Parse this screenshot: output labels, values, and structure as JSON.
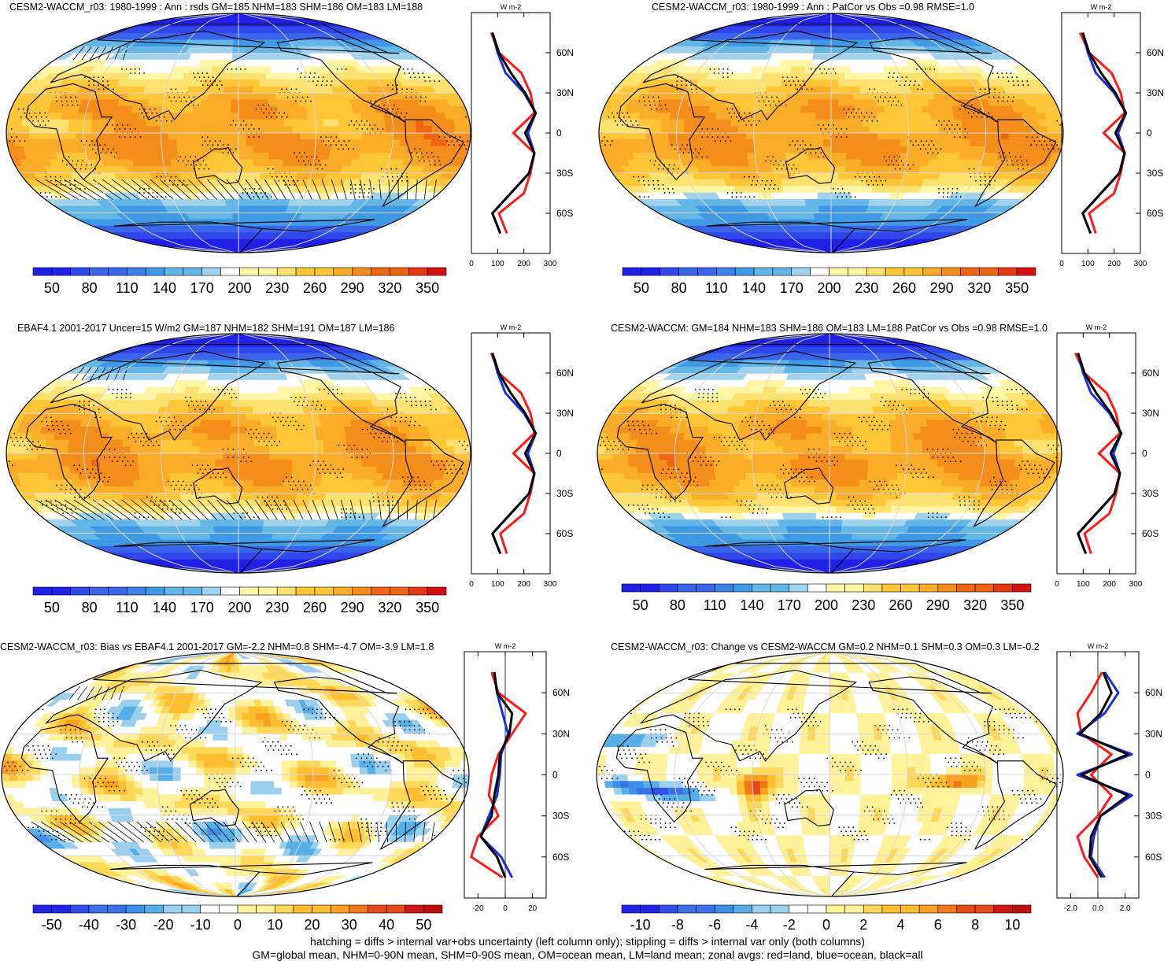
{
  "panels": [
    {
      "title": "CESM2-WACCM_r03: 1980-1999 : Ann : rsds GM=185 NHM=183 SHM=186 OM=183 LM=188",
      "field": "clim",
      "hatch": true,
      "stipple": true,
      "colorbar": [
        "50",
        "80",
        "110",
        "140",
        "170",
        "200",
        "230",
        "260",
        "290",
        "320",
        "350"
      ],
      "zonal": {
        "units": "W m-2",
        "lat_labels": [
          "60N",
          "30N",
          "0",
          "30S",
          "60S"
        ],
        "x_ticks": [
          "0",
          "100",
          "200",
          "300"
        ],
        "xlim": [
          0,
          300
        ],
        "lat_values": [
          75,
          60,
          45,
          30,
          15,
          0,
          -15,
          -30,
          -45,
          -60,
          -75
        ],
        "land": [
          75,
          105,
          190,
          225,
          240,
          160,
          240,
          225,
          200,
          105,
          135
        ],
        "ocean": [
          80,
          100,
          130,
          200,
          245,
          215,
          240,
          220,
          150,
          80,
          110
        ],
        "all": [
          80,
          105,
          150,
          205,
          245,
          205,
          240,
          220,
          150,
          80,
          110
        ]
      }
    },
    {
      "title": "CESM2-WACCM_r03: 1980-1999 : Ann : PatCor vs Obs =0.98 RMSE=1.0",
      "field": "clim",
      "hatch": false,
      "stipple": true,
      "colorbar": [
        "50",
        "80",
        "110",
        "140",
        "170",
        "200",
        "230",
        "260",
        "290",
        "320",
        "350"
      ],
      "zonal": {
        "units": "W m-2",
        "lat_labels": [
          "60N",
          "30N",
          "0",
          "30S",
          "60S"
        ],
        "x_ticks": [
          "0",
          "100",
          "200",
          "300"
        ],
        "xlim": [
          0,
          300
        ],
        "lat_values": [
          75,
          60,
          45,
          30,
          15,
          0,
          -15,
          -30,
          -45,
          -60,
          -75
        ],
        "land": [
          70,
          105,
          190,
          225,
          240,
          160,
          240,
          225,
          200,
          105,
          130
        ],
        "ocean": [
          80,
          100,
          130,
          200,
          245,
          215,
          240,
          220,
          150,
          80,
          110
        ],
        "all": [
          80,
          105,
          150,
          205,
          245,
          205,
          240,
          220,
          150,
          80,
          110
        ]
      }
    },
    {
      "title": "EBAF4.1 2001-2017 Uncer=15 W/m2 GM=187 NHM=182 SHM=191 OM=187 LM=186",
      "field": "clim",
      "hatch": true,
      "stipple": true,
      "colorbar": [
        "50",
        "80",
        "110",
        "140",
        "170",
        "200",
        "230",
        "260",
        "290",
        "320",
        "350"
      ],
      "zonal": {
        "units": "W m-2",
        "lat_labels": [
          "60N",
          "30N",
          "0",
          "30S",
          "60S"
        ],
        "x_ticks": [
          "0",
          "100",
          "200",
          "300"
        ],
        "xlim": [
          0,
          300
        ],
        "lat_values": [
          75,
          60,
          45,
          30,
          15,
          0,
          -15,
          -30,
          -45,
          -60,
          -75
        ],
        "land": [
          75,
          105,
          190,
          225,
          240,
          160,
          240,
          225,
          200,
          110,
          135
        ],
        "ocean": [
          80,
          100,
          130,
          200,
          245,
          215,
          240,
          220,
          150,
          80,
          110
        ],
        "all": [
          80,
          105,
          150,
          205,
          245,
          205,
          240,
          220,
          150,
          80,
          110
        ]
      }
    },
    {
      "title": "CESM2-WACCM: GM=184 NHM=183 SHM=186 OM=183 LM=188 PatCor vs Obs =0.98 RMSE=1.0",
      "field": "clim",
      "hatch": false,
      "stipple": true,
      "colorbar": [
        "50",
        "80",
        "110",
        "140",
        "170",
        "200",
        "230",
        "260",
        "290",
        "320",
        "350"
      ],
      "zonal": {
        "units": "W m-2",
        "lat_labels": [
          "60N",
          "30N",
          "0",
          "30S",
          "60S"
        ],
        "x_ticks": [
          "0",
          "100",
          "200",
          "300"
        ],
        "xlim": [
          0,
          300
        ],
        "lat_values": [
          75,
          60,
          45,
          30,
          15,
          0,
          -15,
          -30,
          -45,
          -60,
          -75
        ],
        "land": [
          70,
          105,
          190,
          225,
          240,
          160,
          240,
          225,
          200,
          105,
          130
        ],
        "ocean": [
          80,
          100,
          130,
          200,
          245,
          215,
          240,
          220,
          150,
          80,
          110
        ],
        "all": [
          80,
          105,
          150,
          205,
          245,
          205,
          240,
          220,
          150,
          80,
          110
        ]
      }
    },
    {
      "title": "CESM2-WACCM_r03: Bias vs EBAF4.1 2001-2017 GM=-2.2 NHM=0.8 SHM=-4.7 OM=-3.9 LM=1.8",
      "field": "bias",
      "hatch": true,
      "stipple": true,
      "colorbar": [
        "-50",
        "-40",
        "-30",
        "-20",
        "-10",
        "0",
        "10",
        "20",
        "30",
        "40",
        "50"
      ],
      "zonal": {
        "units": "W m-2",
        "lat_labels": [
          "60N",
          "30N",
          "0",
          "30S",
          "60S"
        ],
        "x_ticks": [
          "-20",
          "0",
          "20"
        ],
        "xlim": [
          -30,
          30
        ],
        "lat_values": [
          75,
          60,
          45,
          30,
          15,
          0,
          -15,
          -30,
          -45,
          -60,
          -75
        ],
        "land": [
          -10,
          -5,
          15,
          5,
          -5,
          -10,
          -12,
          -5,
          -20,
          -25,
          -2
        ],
        "ocean": [
          -8,
          -6,
          -2,
          2,
          -3,
          -4,
          -6,
          -12,
          -18,
          -3,
          5
        ],
        "all": [
          -8,
          -6,
          5,
          3,
          -4,
          -5,
          -8,
          -10,
          -18,
          -6,
          0
        ]
      }
    },
    {
      "title": "CESM2-WACCM_r03: Change vs CESM2-WACCM GM=0.2 NHM=0.1 SHM=0.3 OM=0.3 LM=-0.2",
      "field": "change",
      "hatch": false,
      "stipple": true,
      "colorbar": [
        "-10",
        "-8",
        "-6",
        "-4",
        "-2",
        "0",
        "2",
        "4",
        "6",
        "8",
        "10"
      ],
      "zonal": {
        "units": "W m-2",
        "lat_labels": [
          "60N",
          "30N",
          "0",
          "30S",
          "60S"
        ],
        "x_ticks": [
          "-2.0",
          "0.0",
          "2.0"
        ],
        "xlim": [
          -3,
          3
        ],
        "lat_values": [
          75,
          60,
          45,
          30,
          15,
          0,
          -15,
          -30,
          -45,
          -60,
          -75
        ],
        "land": [
          0.3,
          -0.5,
          -1.5,
          -1.2,
          1.0,
          -0.5,
          1.0,
          0.0,
          -1.5,
          -1.0,
          0.0
        ],
        "ocean": [
          0.5,
          1.5,
          0.5,
          -1.5,
          2.5,
          -1.5,
          2.5,
          0.2,
          -0.3,
          -0.5,
          0.5
        ],
        "all": [
          0.4,
          1.0,
          0.2,
          -1.3,
          2.2,
          -1.2,
          2.2,
          0.2,
          -0.5,
          -0.6,
          0.3
        ]
      }
    }
  ],
  "colors": {
    "clim": [
      "#2020e6",
      "#2f47ea",
      "#3a64ea",
      "#3d80e8",
      "#3f99e4",
      "#63b6e6",
      "#a0d2ee",
      "#ffffff",
      "#fff7a5",
      "#ffe170",
      "#ffc738",
      "#fbac28",
      "#f58d1a",
      "#ee6512",
      "#e43810",
      "#d50f0f"
    ],
    "land": "#ff1a1a",
    "ocean": "#1a2ee8",
    "all": "#000000"
  },
  "caption": {
    "line1": "hatching = diffs > internal var+obs uncertainty (left column only); stippling = diffs > internal var only (both columns)",
    "line2": "GM=global mean, NHM=0-90N mean, SHM=0-90S mean, OM=ocean mean, LM=land mean; zonal avgs: red=land, blue=ocean, black=all"
  }
}
